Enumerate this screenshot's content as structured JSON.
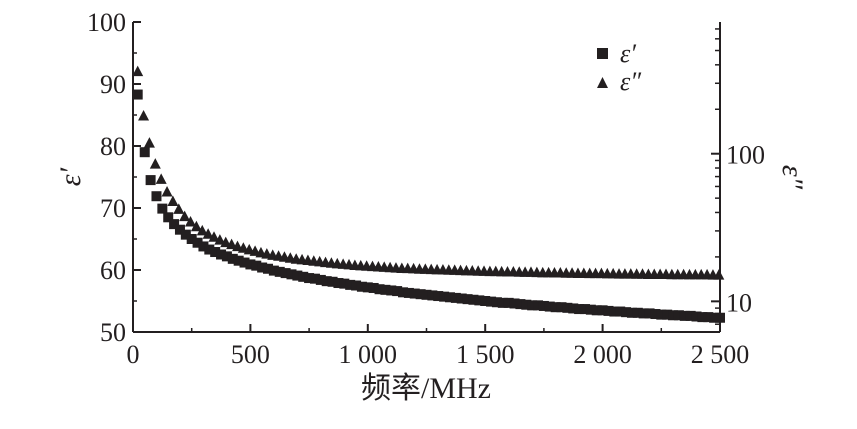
{
  "chart_data": {
    "type": "scatter",
    "title": "",
    "xlabel": "频率/MHz",
    "ylabel_left": "ε′",
    "ylabel_right": "ε″",
    "x_ticks": [
      {
        "value": 0,
        "label": "0"
      },
      {
        "value": 500,
        "label": "500"
      },
      {
        "value": 1000,
        "label": "1 000"
      },
      {
        "value": 1500,
        "label": "1 500"
      },
      {
        "value": 2000,
        "label": "2 000"
      },
      {
        "value": 2500,
        "label": "2 500"
      }
    ],
    "y_left_ticks": [
      {
        "value": 50,
        "label": "50"
      },
      {
        "value": 60,
        "label": "60"
      },
      {
        "value": 70,
        "label": "70"
      },
      {
        "value": 80,
        "label": "80"
      },
      {
        "value": 90,
        "label": "90"
      },
      {
        "value": 100,
        "label": "100"
      }
    ],
    "y_right_ticks": [
      {
        "value": 10,
        "label": "10"
      },
      {
        "value": 100,
        "label": "100"
      }
    ],
    "xlim": [
      0,
      2500
    ],
    "ylim_left": [
      50,
      100
    ],
    "ylim_right": [
      6.2,
      780
    ],
    "y_right_scale": "log",
    "grid": false,
    "legend_position": "top-right",
    "series": [
      {
        "name": "ε′",
        "marker": "square",
        "axis": "left",
        "color": "#231f20",
        "x": [
          20,
          50,
          75,
          100,
          125,
          150,
          175,
          200,
          225,
          250,
          275,
          300,
          325,
          350,
          375,
          400,
          425,
          450,
          475,
          500,
          525,
          550,
          575,
          600,
          625,
          650,
          675,
          700,
          725,
          750,
          775,
          800,
          825,
          850,
          875,
          900,
          925,
          950,
          975,
          1000,
          1025,
          1050,
          1075,
          1100,
          1125,
          1150,
          1175,
          1200,
          1225,
          1250,
          1275,
          1300,
          1325,
          1350,
          1375,
          1400,
          1425,
          1450,
          1475,
          1500,
          1525,
          1550,
          1575,
          1600,
          1625,
          1650,
          1675,
          1700,
          1725,
          1750,
          1775,
          1800,
          1825,
          1850,
          1875,
          1900,
          1925,
          1950,
          1975,
          2000,
          2025,
          2050,
          2075,
          2100,
          2125,
          2150,
          2175,
          2200,
          2225,
          2250,
          2275,
          2300,
          2325,
          2350,
          2375,
          2400,
          2425,
          2450,
          2475,
          2500
        ],
        "y": [
          88.3,
          79.0,
          74.5,
          71.9,
          69.9,
          68.5,
          67.4,
          66.5,
          65.7,
          65.0,
          64.4,
          63.8,
          63.3,
          62.9,
          62.5,
          62.2,
          61.8,
          61.5,
          61.2,
          60.9,
          60.7,
          60.4,
          60.2,
          59.9,
          59.7,
          59.5,
          59.3,
          59.1,
          58.9,
          58.7,
          58.6,
          58.4,
          58.2,
          58.1,
          57.9,
          57.8,
          57.6,
          57.5,
          57.3,
          57.2,
          57.1,
          56.9,
          56.8,
          56.7,
          56.6,
          56.4,
          56.3,
          56.2,
          56.1,
          56.0,
          55.9,
          55.8,
          55.7,
          55.6,
          55.5,
          55.4,
          55.3,
          55.2,
          55.1,
          55.0,
          54.9,
          54.8,
          54.7,
          54.7,
          54.6,
          54.5,
          54.4,
          54.3,
          54.3,
          54.2,
          54.1,
          54.0,
          54.0,
          53.9,
          53.8,
          53.7,
          53.7,
          53.6,
          53.5,
          53.5,
          53.4,
          53.3,
          53.3,
          53.2,
          53.1,
          53.1,
          53.0,
          53.0,
          52.9,
          52.8,
          52.8,
          52.7,
          52.7,
          52.6,
          52.6,
          52.5,
          52.4,
          52.4,
          52.3,
          52.3
        ]
      },
      {
        "name": "ε″",
        "marker": "triangle",
        "axis": "right",
        "color": "#231f20",
        "x": [
          20,
          45,
          70,
          95,
          120,
          145,
          170,
          195,
          220,
          245,
          270,
          295,
          320,
          345,
          370,
          395,
          420,
          445,
          470,
          495,
          520,
          545,
          570,
          595,
          620,
          645,
          670,
          695,
          720,
          745,
          770,
          795,
          820,
          845,
          870,
          895,
          920,
          945,
          970,
          995,
          1020,
          1045,
          1070,
          1095,
          1120,
          1145,
          1170,
          1195,
          1220,
          1245,
          1270,
          1295,
          1320,
          1345,
          1370,
          1395,
          1420,
          1445,
          1470,
          1495,
          1520,
          1545,
          1570,
          1595,
          1620,
          1645,
          1670,
          1695,
          1720,
          1745,
          1770,
          1795,
          1820,
          1845,
          1870,
          1895,
          1920,
          1945,
          1970,
          1995,
          2020,
          2045,
          2070,
          2095,
          2120,
          2145,
          2170,
          2195,
          2220,
          2245,
          2270,
          2295,
          2320,
          2345,
          2370,
          2395,
          2420,
          2445,
          2470,
          2495
        ],
        "y": [
          360,
          180,
          118,
          85,
          67,
          55,
          47.5,
          42,
          37.5,
          34.5,
          32,
          30,
          28.5,
          27.2,
          26,
          25,
          24.2,
          23.5,
          22.9,
          22.3,
          21.8,
          21.3,
          20.9,
          20.5,
          20.2,
          19.9,
          19.6,
          19.3,
          19.1,
          18.9,
          18.7,
          18.5,
          18.3,
          18.1,
          17.95,
          17.8,
          17.65,
          17.5,
          17.4,
          17.3,
          17.2,
          17.1,
          17.0,
          16.9,
          16.8,
          16.7,
          16.65,
          16.6,
          16.5,
          16.45,
          16.4,
          16.35,
          16.3,
          16.25,
          16.2,
          16.15,
          16.1,
          16.05,
          16.0,
          15.95,
          15.9,
          15.9,
          15.85,
          15.8,
          15.8,
          15.75,
          15.7,
          15.7,
          15.65,
          15.6,
          15.6,
          15.55,
          15.55,
          15.5,
          15.5,
          15.45,
          15.45,
          15.4,
          15.4,
          15.4,
          15.35,
          15.35,
          15.3,
          15.3,
          15.3,
          15.25,
          15.25,
          15.2,
          15.2,
          15.2,
          15.2,
          15.15,
          15.15,
          15.15,
          15.1,
          15.1,
          15.1,
          15.1,
          15.05,
          15.05
        ]
      }
    ]
  }
}
